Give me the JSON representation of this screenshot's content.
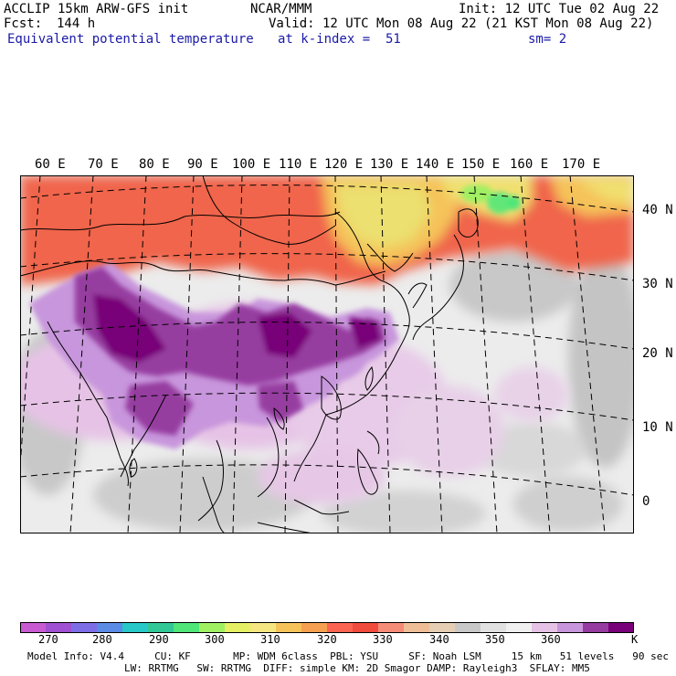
{
  "header": {
    "title_left": "ACCLIP 15km ARW-GFS init",
    "org": "NCAR/MMM",
    "init": "Init: 12 UTC Tue 02 Aug 22",
    "fcst_label": "Fcst:",
    "fcst_value": "144 h",
    "valid": "Valid: 12 UTC Mon 08 Aug 22 (21 KST Mon 08 Aug 22)",
    "field": "Equivalent potential temperature",
    "level": "at k-index =  51",
    "smooth": "sm= 2"
  },
  "map": {
    "lon_labels": [
      "60 E",
      "70 E",
      "80 E",
      "90 E",
      "100 E",
      "110 E",
      "120 E",
      "130 E",
      "140 E",
      "150 E",
      "160 E",
      "170 E"
    ],
    "lat_labels": [
      "40 N",
      "30 N",
      "20 N",
      "10 N",
      "0"
    ]
  },
  "colorbar": {
    "colors": [
      "#c85ad2",
      "#a050d2",
      "#7d6ee6",
      "#5a8ce6",
      "#28c8c8",
      "#32c896",
      "#50e678",
      "#a0f064",
      "#e6f064",
      "#f5e682",
      "#f5c35a",
      "#f5a050",
      "#fa6450",
      "#f04b3c",
      "#f58c78",
      "#f0be96",
      "#e6ceb4",
      "#c8c8c8",
      "#e1e1e1",
      "#f0f0f0",
      "#e6c3e6",
      "#c896dc",
      "#963ca0",
      "#780078"
    ],
    "labels": [
      "270",
      "280",
      "290",
      "300",
      "310",
      "320",
      "330",
      "340",
      "350",
      "360"
    ],
    "unit": "K"
  },
  "footer": {
    "line1": "Model Info: V4.4     CU: KF       MP: WDM 6class  PBL: YSU     SF: Noah LSM     15 km   51 levels   90 sec",
    "line2": "                LW: RRTMG   SW: RRTMG  DIFF: simple KM: 2D Smagor DAMP: Rayleigh3  SFLAY: MM5"
  }
}
